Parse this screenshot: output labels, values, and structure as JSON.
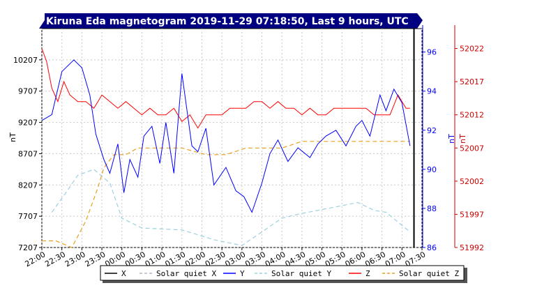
{
  "chart_data": {
    "type": "line",
    "title": "Kiruna Eda magnetogram 2019-11-29 07:18:50, Last 9 hours, UTC",
    "xlabel": "",
    "x_ticks": [
      "22:00",
      "22:30",
      "23:00",
      "23:30",
      "00:00",
      "00:30",
      "01:00",
      "01:30",
      "02:00",
      "02:30",
      "03:00",
      "03:30",
      "04:00",
      "04:30",
      "05:00",
      "05:30",
      "06:00",
      "06:30",
      "07:00",
      "07:30"
    ],
    "x_range_hours": [
      0,
      9.5
    ],
    "current_time_hours": 9.3,
    "axes": {
      "left": {
        "label": "nT",
        "ticks": [
          7207,
          7707,
          8207,
          8707,
          9207,
          9707,
          10207
        ],
        "range": [
          7207,
          10707
        ],
        "color": "#000000"
      },
      "right1": {
        "label": "nT",
        "ticks": [
          86,
          88,
          90,
          92,
          94,
          96
        ],
        "range": [
          86,
          97.2
        ],
        "color": "#0000ff"
      },
      "right2": {
        "label": "nT",
        "ticks": [
          51992,
          51997,
          52002,
          52007,
          52012,
          52017,
          52022
        ],
        "range": [
          51992,
          52025
        ],
        "color": "#cc0000"
      }
    },
    "series": [
      {
        "name": "Y",
        "axis": "right1",
        "color": "#0000ff",
        "style": "solid",
        "x": [
          0,
          0.25,
          0.5,
          0.8,
          1.0,
          1.2,
          1.35,
          1.55,
          1.7,
          1.9,
          2.05,
          2.2,
          2.4,
          2.55,
          2.75,
          2.95,
          3.1,
          3.3,
          3.5,
          3.75,
          3.9,
          4.1,
          4.3,
          4.6,
          4.85,
          5.05,
          5.25,
          5.5,
          5.7,
          5.9,
          6.15,
          6.4,
          6.7,
          6.9,
          7.1,
          7.35,
          7.6,
          7.85,
          8.0,
          8.2,
          8.45,
          8.6,
          8.8,
          9.0,
          9.2
        ],
        "y": [
          92.5,
          92.8,
          95.0,
          95.6,
          95.2,
          93.8,
          91.8,
          90.5,
          89.8,
          91.3,
          88.8,
          90.5,
          89.6,
          91.7,
          92.2,
          90.3,
          92.4,
          89.8,
          94.9,
          91.2,
          90.9,
          92.1,
          89.2,
          90.1,
          88.9,
          88.6,
          87.8,
          89.3,
          90.8,
          91.5,
          90.4,
          91.1,
          90.6,
          91.3,
          91.7,
          92.0,
          91.2,
          92.2,
          92.5,
          91.7,
          93.8,
          93.0,
          94.1,
          93.4,
          91.2
        ]
      },
      {
        "name": "Z",
        "axis": "right2",
        "color": "#ff0000",
        "style": "solid",
        "x": [
          0,
          0.12,
          0.25,
          0.4,
          0.55,
          0.7,
          0.9,
          1.1,
          1.3,
          1.5,
          1.7,
          1.9,
          2.1,
          2.3,
          2.5,
          2.7,
          2.9,
          3.1,
          3.3,
          3.5,
          3.7,
          3.9,
          4.1,
          4.3,
          4.5,
          4.7,
          4.9,
          5.1,
          5.3,
          5.5,
          5.7,
          5.9,
          6.1,
          6.3,
          6.5,
          6.7,
          6.9,
          7.1,
          7.3,
          7.5,
          7.7,
          7.9,
          8.1,
          8.3,
          8.5,
          8.7,
          8.9,
          9.1,
          9.2
        ],
        "y": [
          52022,
          52020,
          52016,
          52014,
          52017,
          52015,
          52014,
          52014,
          52013,
          52015,
          52014,
          52013,
          52014,
          52013,
          52012,
          52013,
          52012,
          52012,
          52013,
          52011,
          52012,
          52010,
          52012,
          52012,
          52012,
          52013,
          52013,
          52013,
          52014,
          52014,
          52013,
          52014,
          52013,
          52013,
          52012,
          52013,
          52012,
          52012,
          52013,
          52013,
          52013,
          52013,
          52013,
          52012,
          52012,
          52012,
          52015,
          52013,
          52013
        ]
      },
      {
        "name": "Solar quiet Y",
        "axis": "right1",
        "color": "#9ed0e0",
        "style": "dashed",
        "x": [
          0.25,
          0.6,
          0.9,
          1.3,
          1.7,
          2.0,
          2.5,
          3.5,
          4.3,
          5.0,
          5.5,
          6.0,
          6.4,
          6.9,
          7.4,
          7.9,
          8.3,
          8.6,
          9.2
        ],
        "y": [
          87.8,
          88.8,
          89.7,
          90.0,
          89.3,
          87.5,
          87.0,
          86.9,
          86.4,
          86.1,
          86.8,
          87.5,
          87.7,
          87.9,
          88.1,
          88.3,
          87.9,
          87.8,
          86.8
        ]
      },
      {
        "name": "Solar quiet Z",
        "axis": "right2",
        "color": "#e8a020",
        "style": "dashed",
        "x": [
          0,
          0.35,
          0.75,
          1.1,
          1.4,
          1.55,
          1.8,
          2.1,
          2.4,
          2.7,
          3.0,
          3.5,
          4.1,
          4.6,
          5.1,
          5.5,
          6.0,
          6.5,
          7.0,
          7.5,
          8.0,
          8.5,
          9.0,
          9.2
        ],
        "y": [
          51993,
          51993,
          51992,
          51996,
          52001,
          52004,
          52006,
          52006,
          52007,
          52007,
          52007,
          52007,
          52006,
          52006,
          52007,
          52007,
          52007,
          52008,
          52008,
          52008,
          52008,
          52008,
          52008,
          52008
        ]
      }
    ],
    "legend": [
      {
        "name": "X",
        "color": "#000000",
        "style": "solid"
      },
      {
        "name": "Solar quiet X",
        "color": "#a8b8c8",
        "style": "dashed"
      },
      {
        "name": "Y",
        "color": "#0000ff",
        "style": "solid"
      },
      {
        "name": "Solar quiet Y",
        "color": "#9ed0e0",
        "style": "dashed"
      },
      {
        "name": "Z",
        "color": "#ff0000",
        "style": "solid"
      },
      {
        "name": "Solar quiet Z",
        "color": "#e8a020",
        "style": "dashed"
      }
    ],
    "legend_placement": "bottom-center",
    "grid": true,
    "title_bar_color": "#000080"
  }
}
